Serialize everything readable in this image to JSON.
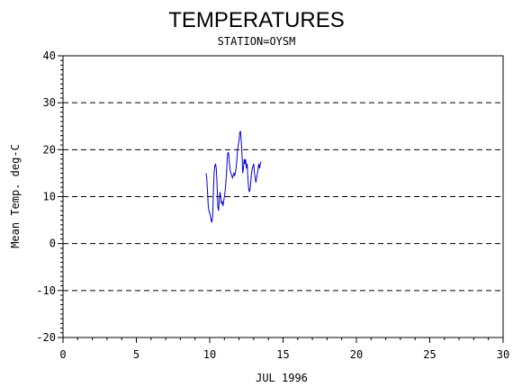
{
  "chart_data": {
    "type": "line",
    "title": "TEMPERATURES",
    "subtitle": "STATION=OYSM",
    "xlabel": "JUL 1996",
    "ylabel": "Mean Temp. deg-C",
    "xlim": [
      0,
      30
    ],
    "ylim": [
      -20,
      40
    ],
    "x_ticks": [
      0,
      5,
      10,
      15,
      20,
      25,
      30
    ],
    "x_tick_labels": [
      "0",
      "5",
      "10",
      "15",
      "20",
      "25",
      "30"
    ],
    "y_ticks": [
      -20,
      -10,
      0,
      10,
      20,
      30,
      40
    ],
    "y_tick_labels": [
      "-20",
      "-10",
      "0",
      "10",
      "20",
      "30",
      "40"
    ],
    "grid": "horizontal dashed",
    "legend": "none",
    "series": [
      {
        "color": "#0000cc",
        "x": [
          9.75,
          9.8,
          9.85,
          9.9,
          9.95,
          10.0,
          10.05,
          10.1,
          10.15,
          10.2,
          10.25,
          10.3,
          10.35,
          10.4,
          10.45,
          10.5,
          10.55,
          10.6,
          10.65,
          10.7,
          10.75,
          10.8,
          10.85,
          10.9,
          10.95,
          11.0,
          11.05,
          11.1,
          11.15,
          11.2,
          11.25,
          11.3,
          11.35,
          11.4,
          11.45,
          11.5,
          11.55,
          11.6,
          11.65,
          11.7,
          11.75,
          11.8,
          11.85,
          11.9,
          11.95,
          12.0,
          12.05,
          12.1,
          12.15,
          12.2,
          12.25,
          12.3,
          12.35,
          12.4,
          12.45,
          12.5,
          12.55,
          12.6,
          12.65,
          12.7,
          12.75,
          12.8,
          12.85,
          12.9,
          12.95,
          13.0,
          13.05,
          13.1,
          13.15,
          13.2,
          13.25,
          13.3,
          13.35,
          13.4,
          13.45,
          13.5
        ],
        "y": [
          15,
          14,
          11,
          8,
          7,
          6.5,
          6,
          5,
          4.5,
          6,
          11,
          15,
          16.5,
          17,
          16,
          13,
          8,
          7,
          9,
          11,
          10,
          8.5,
          9,
          8,
          9,
          10,
          11,
          13,
          15,
          18.5,
          19.5,
          19,
          17,
          15.5,
          15,
          14.5,
          14,
          14.5,
          15,
          14.5,
          15,
          16,
          18,
          20,
          21,
          22,
          23.5,
          24,
          22,
          19,
          15,
          16,
          18,
          17,
          18,
          16,
          17,
          14,
          12,
          11,
          11.5,
          13,
          15,
          16,
          16.5,
          17,
          15,
          14,
          13,
          14,
          15,
          16,
          17,
          16,
          17,
          17.5
        ]
      }
    ]
  }
}
